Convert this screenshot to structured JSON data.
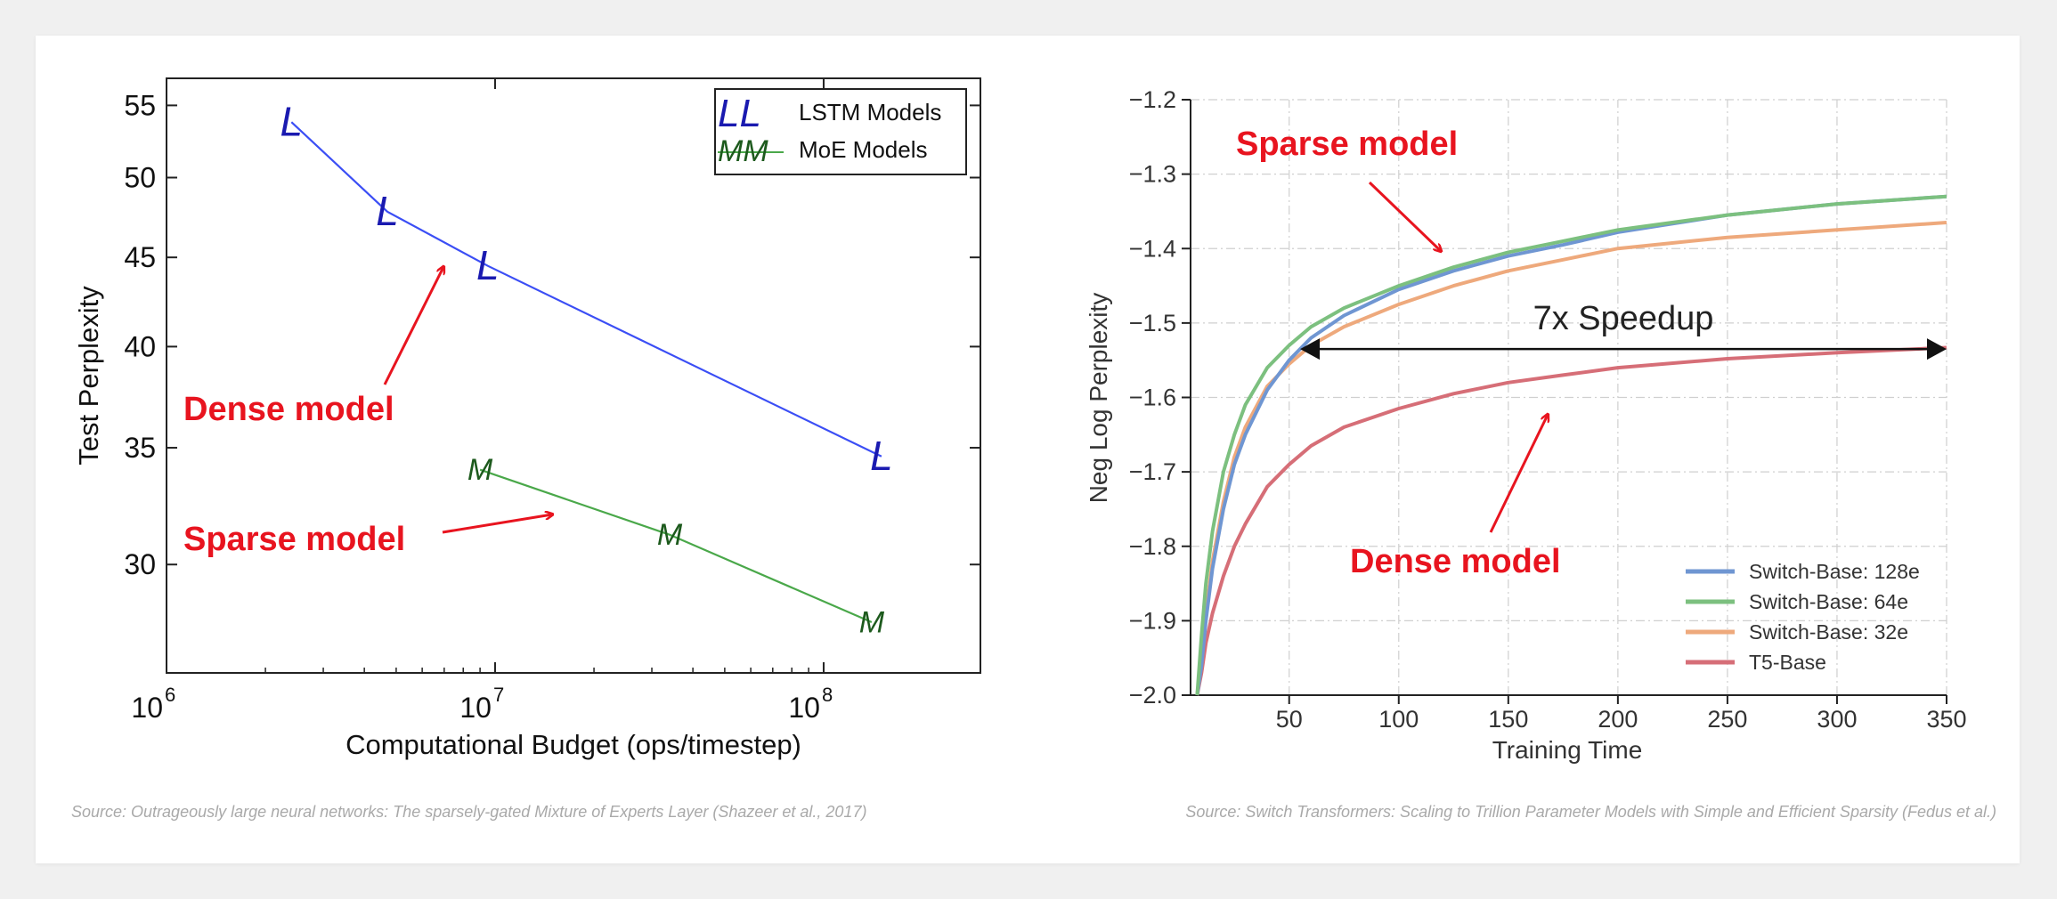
{
  "chart_data": [
    {
      "type": "line",
      "xscale": "log",
      "yscale": "log",
      "xlim": [
        1000000,
        300000000
      ],
      "ylim": [
        26,
        57
      ],
      "xticks": [
        {
          "value": 1000000,
          "base": "10",
          "exp": "6"
        },
        {
          "value": 10000000,
          "base": "10",
          "exp": "7"
        },
        {
          "value": 100000000,
          "base": "10",
          "exp": "8"
        }
      ],
      "yticks": [
        30,
        35,
        40,
        45,
        50,
        55
      ],
      "xlabel": "Computational Budget (ops/timestep)",
      "ylabel": "Test Perplexity",
      "grid": false,
      "legend_position": "top-right",
      "series": [
        {
          "name": "LSTM Models",
          "marker": "L",
          "color": "#3b4ef5",
          "marker_color": "#1a1ab0",
          "points": [
            [
              2400000,
              53.8
            ],
            [
              4700000,
              47.8
            ],
            [
              9500000,
              44.5
            ],
            [
              150000000,
              34.6
            ]
          ]
        },
        {
          "name": "MoE Models",
          "marker": "M",
          "color": "#4aa84a",
          "marker_color": "#1d5a1d",
          "points": [
            [
              9000000,
              34.0
            ],
            [
              34000000,
              31.2
            ],
            [
              140000000,
              27.8
            ]
          ]
        }
      ],
      "annotations": [
        {
          "text": "Dense model",
          "color": "#e8141f"
        },
        {
          "text": "Sparse model",
          "color": "#e8141f"
        }
      ],
      "source": "Source: Outrageously large neural networks: The sparsely-gated Mixture of Experts Layer (Shazeer et al., 2017)"
    },
    {
      "type": "line",
      "xlim": [
        5,
        350
      ],
      "ylim": [
        -2.0,
        -1.2
      ],
      "xticks": [
        50,
        100,
        150,
        200,
        250,
        300,
        350
      ],
      "yticks": [
        "−1.2",
        "−1.3",
        "−1.4",
        "−1.5",
        "−1.6",
        "−1.7",
        "−1.8",
        "−1.9",
        "−2.0"
      ],
      "yticks_values": [
        -1.2,
        -1.3,
        -1.4,
        -1.5,
        -1.6,
        -1.7,
        -1.8,
        -1.9,
        -2.0
      ],
      "xlabel": "Training Time",
      "ylabel": "Neg Log Perplexity",
      "grid": true,
      "legend_position": "bottom-right",
      "series": [
        {
          "name": "Switch-Base: 128e",
          "color": "#6f96d2",
          "x": [
            8,
            10,
            12,
            15,
            20,
            25,
            30,
            40,
            50,
            60,
            75,
            100,
            125,
            150,
            175,
            200,
            250,
            300,
            350
          ],
          "y": [
            -2.0,
            -1.96,
            -1.9,
            -1.83,
            -1.75,
            -1.69,
            -1.65,
            -1.59,
            -1.55,
            -1.52,
            -1.49,
            -1.455,
            -1.43,
            -1.41,
            -1.395,
            -1.378,
            -1.355,
            -1.34,
            -1.33
          ]
        },
        {
          "name": "Switch-Base: 64e",
          "color": "#7cc07f",
          "x": [
            8,
            10,
            12,
            15,
            20,
            25,
            30,
            40,
            50,
            60,
            75,
            100,
            125,
            150,
            175,
            200,
            250,
            300,
            350
          ],
          "y": [
            -2.0,
            -1.92,
            -1.85,
            -1.78,
            -1.7,
            -1.65,
            -1.61,
            -1.56,
            -1.53,
            -1.505,
            -1.48,
            -1.45,
            -1.425,
            -1.405,
            -1.39,
            -1.375,
            -1.355,
            -1.34,
            -1.33
          ]
        },
        {
          "name": "Switch-Base: 32e",
          "color": "#eea97c",
          "x": [
            8,
            10,
            12,
            15,
            20,
            25,
            30,
            40,
            50,
            60,
            75,
            100,
            125,
            150,
            175,
            200,
            250,
            300,
            350
          ],
          "y": [
            -2.0,
            -1.95,
            -1.89,
            -1.82,
            -1.74,
            -1.68,
            -1.64,
            -1.585,
            -1.555,
            -1.53,
            -1.505,
            -1.475,
            -1.45,
            -1.43,
            -1.415,
            -1.4,
            -1.385,
            -1.375,
            -1.365
          ]
        },
        {
          "name": "T5-Base",
          "color": "#d66e77",
          "x": [
            8,
            10,
            12,
            15,
            20,
            25,
            30,
            40,
            50,
            60,
            75,
            100,
            125,
            150,
            175,
            200,
            250,
            300,
            350
          ],
          "y": [
            -2.0,
            -1.97,
            -1.93,
            -1.89,
            -1.84,
            -1.8,
            -1.77,
            -1.72,
            -1.69,
            -1.665,
            -1.64,
            -1.615,
            -1.595,
            -1.58,
            -1.57,
            -1.56,
            -1.548,
            -1.54,
            -1.533
          ]
        }
      ],
      "speedup": {
        "text": "7x Speedup",
        "x_from": 55,
        "x_to": 350,
        "y": -1.535
      },
      "annotations": [
        {
          "text": "Sparse model",
          "color": "#e8141f"
        },
        {
          "text": "Dense model",
          "color": "#e8141f"
        }
      ],
      "source": "Source: Switch Transformers: Scaling to Trillion Parameter Models with Simple and Efficient Sparsity (Fedus et al.)"
    }
  ]
}
